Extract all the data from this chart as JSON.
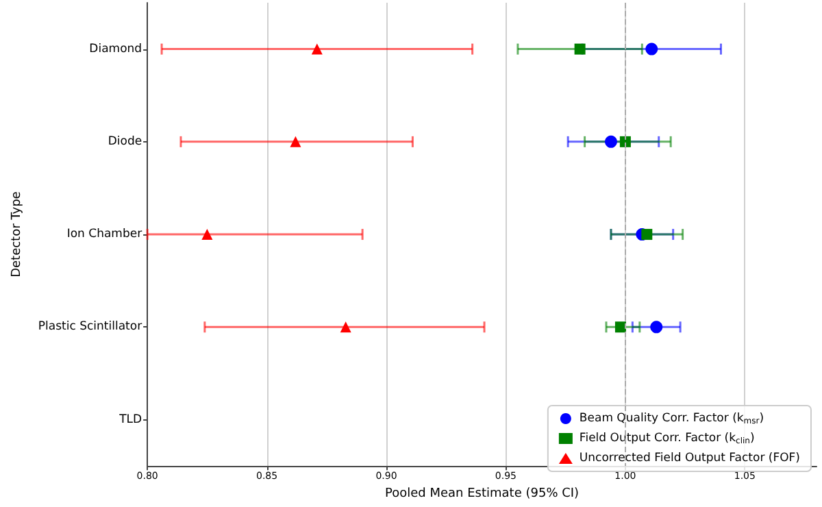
{
  "chart_data": {
    "type": "scatter",
    "xlabel": "Pooled Mean Estimate (95% CI)",
    "ylabel": "Detector Type",
    "categories": [
      "Diamond",
      "Diode",
      "Ion Chamber",
      "Plastic Scintillator",
      "TLD"
    ],
    "orientation": "horizontal",
    "xlim": [
      0.8,
      1.08
    ],
    "xticks": [
      {
        "value": 0.8,
        "label": "0.80"
      },
      {
        "value": 0.85,
        "label": "0.85"
      },
      {
        "value": 0.9,
        "label": "0.90"
      },
      {
        "value": 0.95,
        "label": "0.95"
      },
      {
        "value": 1.0,
        "label": "1.00"
      },
      {
        "value": 1.05,
        "label": "1.05"
      }
    ],
    "grid": "x",
    "legend": "bottom right",
    "ref_lines": [
      {
        "axis": "x",
        "value": 1.0,
        "color": "#aaaaaa",
        "line_style": "dashed"
      }
    ],
    "series": [
      {
        "name": "Beam Quality Corr. Factor (k$_{msr}$)",
        "color": "#0000ff",
        "marker": "circle",
        "values": [
          1.011,
          0.994,
          1.007,
          1.013,
          null
        ],
        "errors": [
          [
            0.982,
            1.04
          ],
          [
            0.976,
            1.014
          ],
          [
            0.994,
            1.02
          ],
          [
            1.003,
            1.023
          ],
          null
        ]
      },
      {
        "name": "Field Output Corr. Factor (k$_{clin}$)",
        "color": "#008000",
        "marker": "square",
        "values": [
          0.981,
          1.0,
          1.009,
          0.998,
          null
        ],
        "errors": [
          [
            0.955,
            1.007
          ],
          [
            0.983,
            1.019
          ],
          [
            0.994,
            1.024
          ],
          [
            0.992,
            1.006
          ],
          null
        ]
      },
      {
        "name": "Uncorrected Field Output Factor (FOF)",
        "color": "#ff0000",
        "marker": "triangle",
        "values": [
          0.871,
          0.862,
          0.825,
          0.883,
          null
        ],
        "errors": [
          [
            0.806,
            0.936
          ],
          [
            0.814,
            0.911
          ],
          [
            0.8,
            0.89
          ],
          [
            0.824,
            0.941
          ],
          null
        ]
      }
    ]
  }
}
